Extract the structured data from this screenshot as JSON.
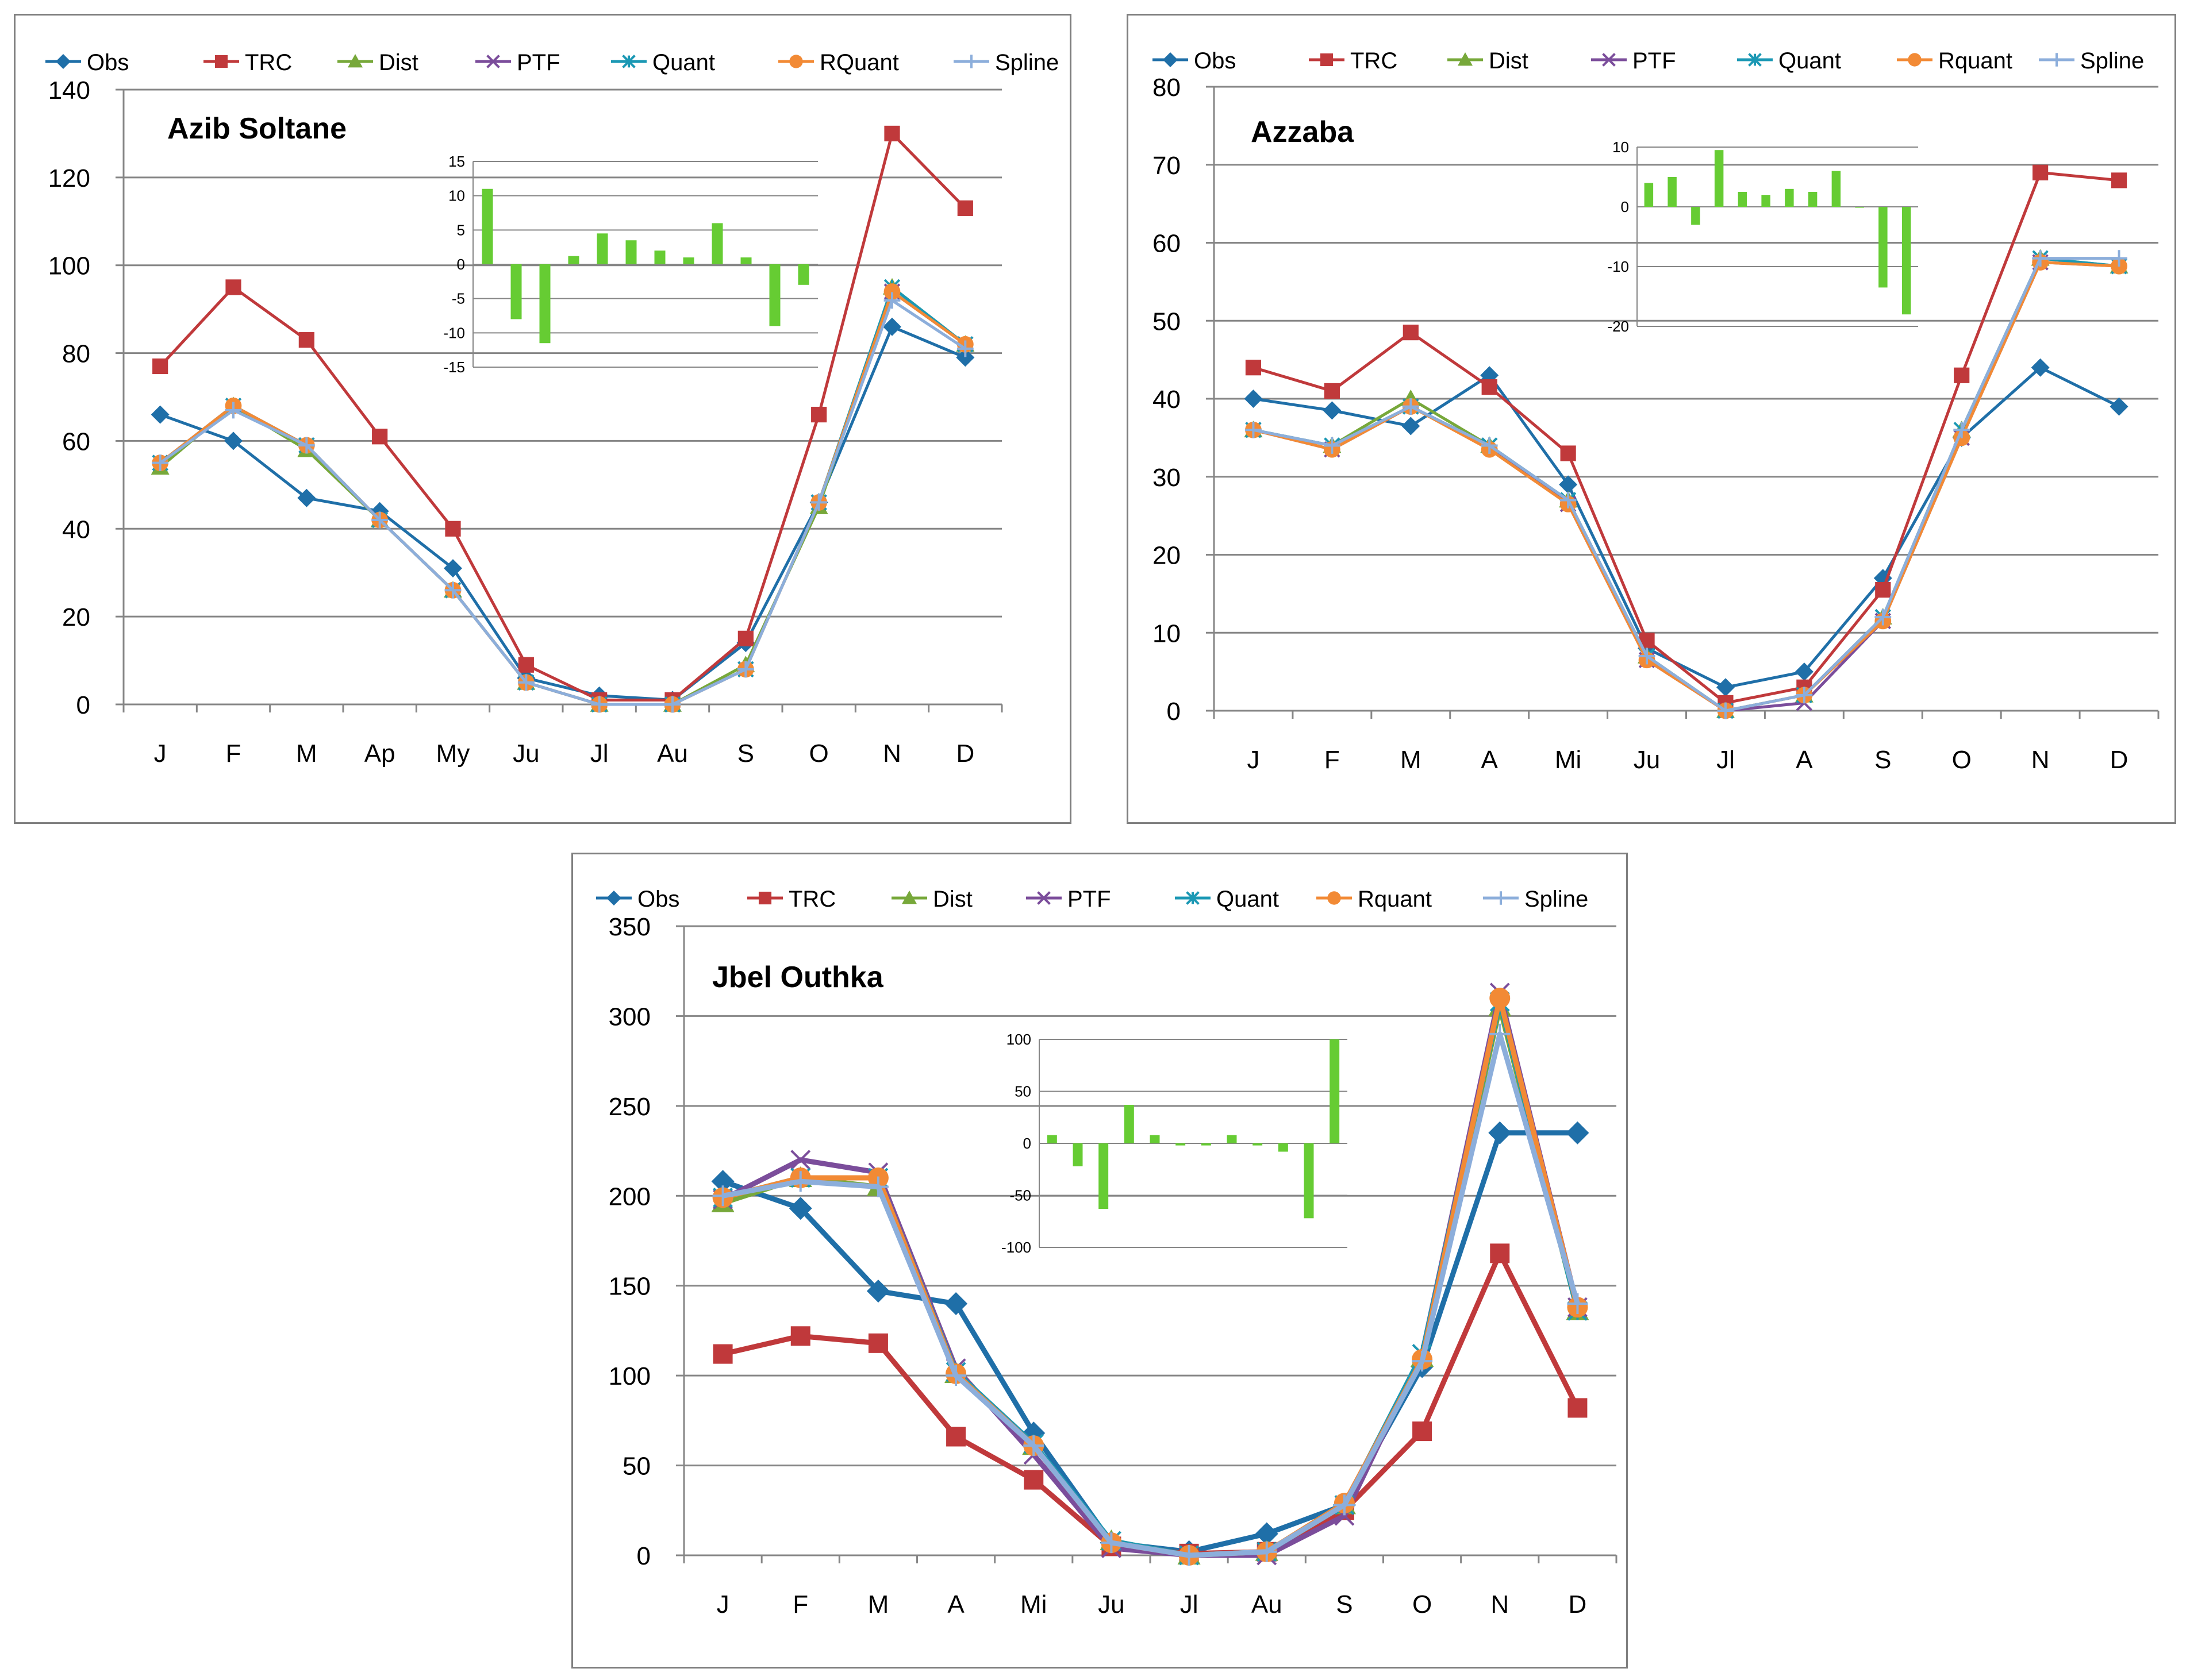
{
  "chart_data": [
    {
      "type": "line",
      "title": "Azib Soltane",
      "categories": [
        "J",
        "F",
        "M",
        "Ap",
        "My",
        "Ju",
        "Jl",
        "Au",
        "S",
        "O",
        "N",
        "D"
      ],
      "ylim": [
        0,
        140
      ],
      "yticks": [
        0,
        20,
        40,
        60,
        80,
        100,
        120,
        140
      ],
      "legend": [
        "Obs",
        "TRC",
        "Dist",
        "PTF",
        "Quant",
        "RQuant",
        "Spline"
      ],
      "series": [
        {
          "name": "Obs",
          "color": "#1f6fa8",
          "marker": "diamond",
          "values": [
            66,
            60,
            47,
            44,
            31,
            6,
            2,
            1,
            14,
            46,
            86,
            79
          ]
        },
        {
          "name": "TRC",
          "color": "#c0393b",
          "marker": "square",
          "values": [
            77,
            95,
            83,
            61,
            40,
            9,
            1,
            1,
            15,
            66,
            130,
            113
          ]
        },
        {
          "name": "Dist",
          "color": "#77a83a",
          "marker": "triangle",
          "values": [
            54,
            68,
            58,
            42,
            26,
            5,
            0,
            0,
            9,
            45,
            95,
            82
          ]
        },
        {
          "name": "PTF",
          "color": "#7b4d9b",
          "marker": "x",
          "values": [
            55,
            68,
            59,
            42,
            26,
            5,
            0,
            0,
            8,
            46,
            94,
            82
          ]
        },
        {
          "name": "Quant",
          "color": "#1b98b4",
          "marker": "star",
          "values": [
            55,
            68,
            59,
            42,
            26,
            5,
            0,
            0,
            8,
            46,
            95,
            82
          ]
        },
        {
          "name": "RQuant",
          "color": "#f28a35",
          "marker": "circle",
          "values": [
            55,
            68,
            59,
            42,
            26,
            5,
            0,
            0,
            8,
            46,
            94,
            82
          ]
        },
        {
          "name": "Spline",
          "color": "#8caedb",
          "marker": "plus",
          "values": [
            55,
            67,
            59,
            42,
            26,
            5,
            0,
            0,
            8,
            46,
            92,
            81
          ]
        }
      ],
      "inset": {
        "type": "bar",
        "color": "#66cc33",
        "ylim": [
          -15,
          15
        ],
        "yticks": [
          15,
          10,
          5,
          0,
          -5,
          -10,
          -15
        ],
        "values": [
          11,
          -8,
          -11.5,
          1.2,
          4.5,
          3.5,
          2,
          1,
          6,
          1,
          -9,
          -3
        ]
      }
    },
    {
      "type": "line",
      "title": "Azzaba",
      "categories": [
        "J",
        "F",
        "M",
        "A",
        "Mi",
        "Ju",
        "Jl",
        "A",
        "S",
        "O",
        "N",
        "D"
      ],
      "ylim": [
        0,
        80
      ],
      "yticks": [
        0,
        10,
        20,
        30,
        40,
        50,
        60,
        70,
        80
      ],
      "legend": [
        "Obs",
        "TRC",
        "Dist",
        "PTF",
        "Quant",
        "Rquant",
        "Spline"
      ],
      "series": [
        {
          "name": "Obs",
          "color": "#1f6fa8",
          "marker": "diamond",
          "values": [
            40,
            38.5,
            36.5,
            43,
            29,
            8,
            3,
            5,
            17,
            35,
            44,
            39
          ]
        },
        {
          "name": "TRC",
          "color": "#c0393b",
          "marker": "square",
          "values": [
            44,
            41,
            48.5,
            41.5,
            33,
            9,
            1,
            3,
            15.5,
            43,
            69,
            68
          ]
        },
        {
          "name": "Dist",
          "color": "#77a83a",
          "marker": "triangle",
          "values": [
            36,
            34,
            40,
            34,
            27,
            7,
            0,
            2,
            12,
            36,
            58,
            57
          ]
        },
        {
          "name": "PTF",
          "color": "#7b4d9b",
          "marker": "x",
          "values": [
            36,
            33.5,
            39,
            34,
            26.5,
            6.5,
            0,
            1,
            11.5,
            35,
            57.5,
            57
          ]
        },
        {
          "name": "Quant",
          "color": "#1b98b4",
          "marker": "star",
          "values": [
            36,
            34,
            39,
            34,
            27,
            7,
            0,
            2,
            12,
            36,
            58,
            57
          ]
        },
        {
          "name": "Rquant",
          "color": "#f28a35",
          "marker": "circle",
          "values": [
            36,
            33.5,
            39,
            33.5,
            26.5,
            6.5,
            0,
            2,
            11.5,
            35,
            57.5,
            57
          ]
        },
        {
          "name": "Spline",
          "color": "#8caedb",
          "marker": "plus",
          "values": [
            36,
            34,
            39,
            34,
            27,
            7,
            0,
            2,
            12,
            36,
            58,
            58
          ]
        }
      ],
      "inset": {
        "type": "bar",
        "color": "#66cc33",
        "ylim": [
          -20,
          10
        ],
        "yticks": [
          10,
          0,
          -10,
          -20
        ],
        "values": [
          4,
          5,
          -3,
          9.5,
          2.5,
          2,
          3,
          2.5,
          6,
          0,
          -13.5,
          -18
        ]
      }
    },
    {
      "type": "line",
      "title": "Jbel Outhka",
      "categories": [
        "J",
        "F",
        "M",
        "A",
        "Mi",
        "Ju",
        "Jl",
        "Au",
        "S",
        "O",
        "N",
        "D"
      ],
      "ylim": [
        0,
        350
      ],
      "yticks": [
        0,
        50,
        100,
        150,
        200,
        250,
        300,
        350
      ],
      "legend": [
        "Obs",
        "TRC",
        "Dist",
        "PTF",
        "Quant",
        "Rquant",
        "Spline"
      ],
      "series": [
        {
          "name": "Obs",
          "color": "#1f6fa8",
          "marker": "diamond",
          "values": [
            208,
            193,
            147,
            140,
            68,
            7,
            2,
            12,
            28,
            105,
            235,
            235
          ]
        },
        {
          "name": "TRC",
          "color": "#c0393b",
          "marker": "square",
          "values": [
            112,
            122,
            118,
            66,
            42,
            5,
            1,
            2,
            25,
            69,
            168,
            82
          ]
        },
        {
          "name": "Dist",
          "color": "#77a83a",
          "marker": "triangle",
          "values": [
            196,
            210,
            205,
            101,
            61,
            8,
            0,
            2,
            28,
            110,
            305,
            136
          ]
        },
        {
          "name": "PTF",
          "color": "#7b4d9b",
          "marker": "x",
          "values": [
            198,
            220,
            213,
            104,
            56,
            4,
            0,
            0,
            22,
            112,
            313,
            138
          ]
        },
        {
          "name": "Quant",
          "color": "#1b98b4",
          "marker": "star",
          "values": [
            199,
            210,
            210,
            102,
            62,
            8,
            0,
            2,
            28,
            112,
            308,
            136
          ]
        },
        {
          "name": "Rquant",
          "color": "#f28a35",
          "marker": "circle",
          "values": [
            199,
            210,
            210,
            101,
            61,
            7,
            0,
            2,
            29,
            109,
            310,
            138
          ]
        },
        {
          "name": "Spline",
          "color": "#8caedb",
          "marker": "plus",
          "values": [
            200,
            208,
            205,
            100,
            61,
            7,
            0,
            2,
            28,
            108,
            290,
            140
          ]
        }
      ],
      "inset": {
        "type": "bar",
        "color": "#66cc33",
        "ylim": [
          -100,
          100
        ],
        "yticks": [
          100,
          50,
          0,
          -50,
          -100
        ],
        "values": [
          8,
          -22,
          -63,
          37,
          8,
          -2,
          -2,
          8,
          -2,
          -8,
          -72,
          100
        ]
      }
    }
  ]
}
